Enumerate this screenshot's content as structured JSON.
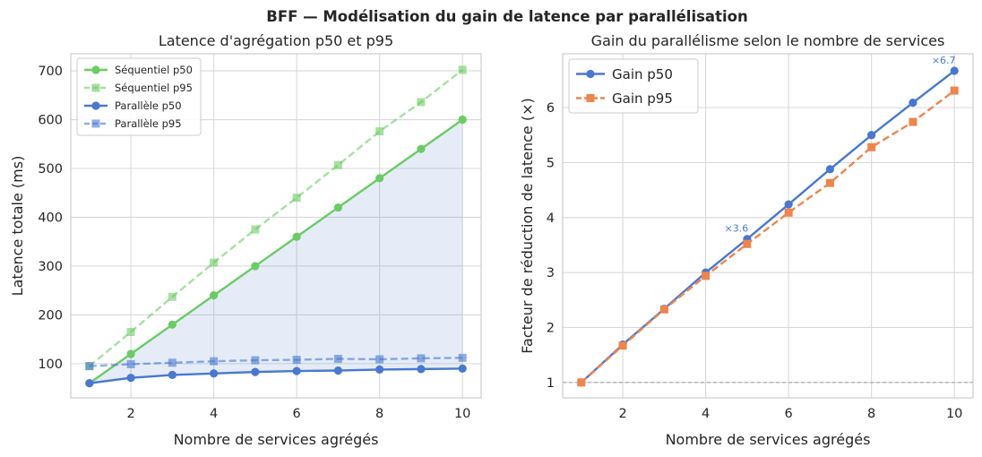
{
  "suptitle": "BFF — Modélisation du gain de latence par parallélisation",
  "chart_data": [
    {
      "type": "line",
      "title": "Latence d'agrégation p50 et p95",
      "xlabel": "Nombre de services agrégés",
      "ylabel": "Latence totale (ms)",
      "xlim": [
        0.55,
        10.45
      ],
      "ylim": [
        30,
        735
      ],
      "xticks": [
        2,
        4,
        6,
        8,
        10
      ],
      "yticks": [
        100,
        200,
        300,
        400,
        500,
        600,
        700
      ],
      "grid": true,
      "legend_position": "top-left",
      "shaded_between": [
        "Séquentiel p50",
        "Parallèle p50"
      ],
      "x": [
        1,
        2,
        3,
        4,
        5,
        6,
        7,
        8,
        9,
        10
      ],
      "series": [
        {
          "name": "Séquentiel p50",
          "color": "#6acc64",
          "dashed": false,
          "marker": "circle",
          "values": [
            60,
            120,
            180,
            240,
            300,
            360,
            420,
            480,
            540,
            600
          ]
        },
        {
          "name": "Séquentiel p95",
          "color": "#6acc64",
          "dashed": true,
          "marker": "square",
          "values": [
            95,
            165,
            237,
            307,
            375,
            440,
            507,
            576,
            636,
            702
          ]
        },
        {
          "name": "Parallèle p50",
          "color": "#4878d0",
          "dashed": false,
          "marker": "circle",
          "values": [
            60,
            71,
            77,
            80,
            83,
            85,
            86,
            88,
            89,
            90
          ]
        },
        {
          "name": "Parallèle p95",
          "color": "#4878d0",
          "dashed": true,
          "marker": "square",
          "values": [
            95,
            99,
            102,
            105,
            107,
            108,
            110,
            109,
            111,
            112
          ]
        }
      ]
    },
    {
      "type": "line",
      "title": "Gain du parallélisme selon le nombre de services",
      "xlabel": "Nombre de services agrégés",
      "ylabel": "Facteur de réduction de latence (×)",
      "xlim": [
        0.55,
        10.45
      ],
      "ylim": [
        0.72,
        6.98
      ],
      "xticks": [
        2,
        4,
        6,
        8,
        10
      ],
      "yticks": [
        1,
        2,
        3,
        4,
        5,
        6
      ],
      "grid": true,
      "legend_position": "top-left",
      "reference_line": 1,
      "x": [
        1,
        2,
        3,
        4,
        5,
        6,
        7,
        8,
        9,
        10
      ],
      "series": [
        {
          "name": "Gain p50",
          "color": "#4878d0",
          "dashed": false,
          "marker": "circle",
          "values": [
            1.0,
            1.69,
            2.34,
            3.0,
            3.61,
            4.24,
            4.88,
            5.5,
            6.09,
            6.67
          ]
        },
        {
          "name": "Gain p95",
          "color": "#ee854a",
          "dashed": true,
          "marker": "square",
          "values": [
            1.0,
            1.67,
            2.33,
            2.94,
            3.52,
            4.09,
            4.63,
            5.28,
            5.74,
            6.31
          ]
        }
      ],
      "annotations": [
        {
          "text": "×3.6",
          "x": 5,
          "y": 3.61
        },
        {
          "text": "×6.7",
          "x": 10,
          "y": 6.67
        }
      ]
    }
  ]
}
